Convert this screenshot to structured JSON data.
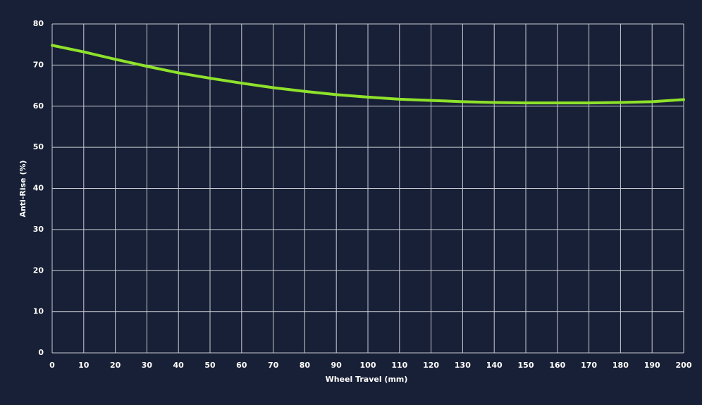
{
  "chart_data": {
    "type": "line",
    "xlabel": "Wheel Travel (mm)",
    "ylabel": "Anti-Rise (%)",
    "x": [
      0,
      10,
      20,
      30,
      40,
      50,
      60,
      70,
      80,
      90,
      100,
      110,
      120,
      130,
      140,
      150,
      160,
      170,
      180,
      190,
      200
    ],
    "series": [
      {
        "name": "Anti-Rise",
        "color": "#8ee22a",
        "values": [
          74.8,
          73.2,
          71.4,
          69.7,
          68.1,
          66.8,
          65.6,
          64.5,
          63.6,
          62.8,
          62.2,
          61.7,
          61.4,
          61.1,
          60.9,
          60.8,
          60.8,
          60.8,
          60.9,
          61.1,
          61.6
        ]
      }
    ],
    "xlim": [
      0,
      200
    ],
    "xticks": [
      0,
      10,
      20,
      30,
      40,
      50,
      60,
      70,
      80,
      90,
      100,
      110,
      120,
      130,
      140,
      150,
      160,
      170,
      180,
      190,
      200
    ],
    "ylim": [
      0,
      80
    ],
    "yticks": [
      0,
      10,
      20,
      30,
      40,
      50,
      60,
      70,
      80
    ],
    "grid": true
  }
}
